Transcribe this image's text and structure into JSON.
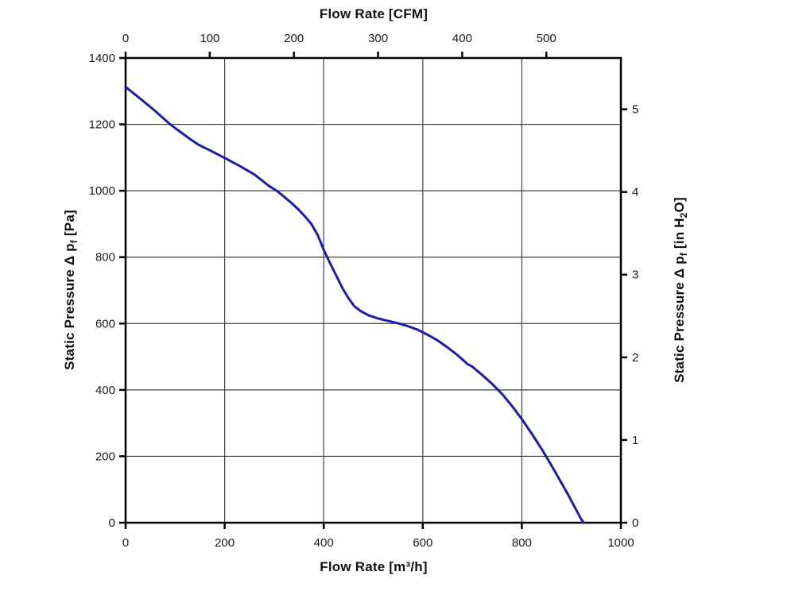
{
  "chart_data": {
    "type": "line",
    "background": "#ffffff",
    "colors": {
      "grid": "#3f3f3f",
      "axis": "#000000",
      "text": "#1a1a1a",
      "curve": "#1c1ca8"
    },
    "axes": {
      "bottom": {
        "title": "Flow Rate [m³/h]",
        "ticks": [
          0,
          200,
          400,
          600,
          800,
          1000
        ],
        "range": [
          0,
          1000
        ],
        "gridlines": [
          200,
          400,
          600,
          800
        ]
      },
      "top": {
        "title": "Flow Rate [CFM]",
        "ticks": [
          0,
          100,
          200,
          300,
          400,
          500
        ],
        "unit_factor_to_bottom": 1.699
      },
      "left": {
        "title_pre": "Static Pressure Δ p",
        "title_sub": "f",
        "title_post": " [Pa]",
        "ticks": [
          0,
          200,
          400,
          600,
          800,
          1000,
          1200,
          1400
        ],
        "range": [
          0,
          1400
        ],
        "gridlines": [
          200,
          400,
          600,
          800,
          1000,
          1200
        ]
      },
      "right": {
        "title_pre": "Static Pressure Δ p",
        "title_sub": "f",
        "title_mid": " [in H",
        "title_sub2": "2",
        "title_post": "O]",
        "ticks": [
          0,
          1,
          2,
          3,
          4,
          5
        ],
        "unit_factor_to_left": 249.089
      }
    },
    "series": [
      {
        "name": "fan-static-pressure-curve",
        "color": "#1c1ca8",
        "points": [
          [
            0,
            1313
          ],
          [
            30,
            1277
          ],
          [
            60,
            1240
          ],
          [
            90,
            1200
          ],
          [
            110,
            1178
          ],
          [
            130,
            1156
          ],
          [
            148,
            1138
          ],
          [
            170,
            1122
          ],
          [
            200,
            1099
          ],
          [
            230,
            1075
          ],
          [
            260,
            1049
          ],
          [
            290,
            1014
          ],
          [
            305,
            1000
          ],
          [
            320,
            982
          ],
          [
            335,
            963
          ],
          [
            348,
            945
          ],
          [
            362,
            923
          ],
          [
            375,
            900
          ],
          [
            388,
            866
          ],
          [
            400,
            822
          ],
          [
            412,
            784
          ],
          [
            425,
            745
          ],
          [
            438,
            706
          ],
          [
            450,
            676
          ],
          [
            462,
            652
          ],
          [
            475,
            637
          ],
          [
            490,
            625
          ],
          [
            510,
            615
          ],
          [
            530,
            608
          ],
          [
            550,
            601
          ],
          [
            570,
            592
          ],
          [
            590,
            581
          ],
          [
            610,
            566
          ],
          [
            630,
            549
          ],
          [
            650,
            528
          ],
          [
            670,
            505
          ],
          [
            690,
            478
          ],
          [
            700,
            470
          ],
          [
            720,
            445
          ],
          [
            740,
            418
          ],
          [
            760,
            388
          ],
          [
            780,
            352
          ],
          [
            800,
            312
          ],
          [
            820,
            268
          ],
          [
            840,
            222
          ],
          [
            860,
            172
          ],
          [
            880,
            120
          ],
          [
            895,
            80
          ],
          [
            910,
            38
          ],
          [
            920,
            10
          ],
          [
            925,
            0
          ]
        ]
      }
    ]
  }
}
